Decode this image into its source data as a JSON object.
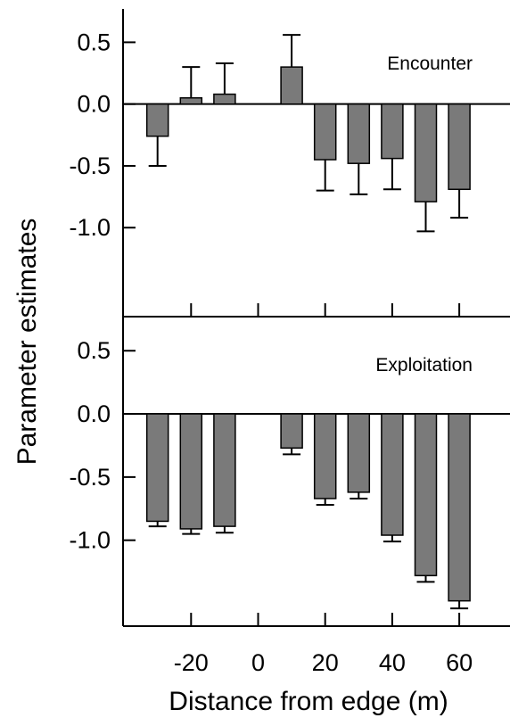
{
  "chart_data": {
    "type": "bar",
    "xlabel": "Distance from edge (m)",
    "ylabel": "Parameter estimates",
    "x_ticks": [
      -20,
      0,
      20,
      40,
      60
    ],
    "x_range": [
      -40,
      70
    ],
    "bar_color": "#7a7a7a",
    "panels": [
      {
        "label": "Encounter",
        "ylim": [
          -1.72,
          0.77
        ],
        "y_ticks": [
          "0.5",
          "0.0",
          "-0.5",
          "-1.0"
        ],
        "x": [
          -30,
          -20,
          -10,
          10,
          20,
          30,
          40,
          50,
          60
        ],
        "values": [
          -0.26,
          0.05,
          0.08,
          0.3,
          -0.45,
          -0.48,
          -0.44,
          -0.79,
          -0.69
        ],
        "errors": [
          0.24,
          0.25,
          0.25,
          0.26,
          0.25,
          0.25,
          0.25,
          0.24,
          0.23
        ]
      },
      {
        "label": "Exploitation",
        "ylim": [
          -1.68,
          0.77
        ],
        "y_ticks": [
          "0.5",
          "0.0",
          "-0.5",
          "-1.0"
        ],
        "x": [
          -30,
          -20,
          -10,
          10,
          20,
          30,
          40,
          50,
          60
        ],
        "values": [
          -0.85,
          -0.91,
          -0.89,
          -0.27,
          -0.67,
          -0.62,
          -0.96,
          -1.28,
          -1.48
        ],
        "errors": [
          0.04,
          0.04,
          0.05,
          0.05,
          0.05,
          0.05,
          0.05,
          0.05,
          0.06
        ]
      }
    ]
  }
}
